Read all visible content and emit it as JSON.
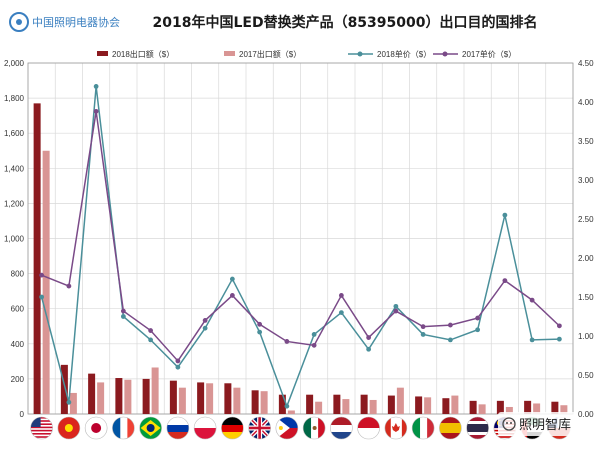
{
  "header": {
    "title": "2018年中国LED替换类产品（85395000）出口目的国排名",
    "logo_text": "中国照明电器协会"
  },
  "watermark": {
    "text": "照明智库"
  },
  "colors": {
    "export_2018": "#8b1a1f",
    "export_2017": "#d99594",
    "price_2018": "#4a8f9a",
    "price_2017": "#7a4a88",
    "grid": "#d9d9d9",
    "axis": "#999999"
  },
  "chart_data": {
    "type": "bar",
    "title": "2018年中国LED替换类产品（85395000）出口目的国排名",
    "xlabel": "",
    "ylabel": "",
    "grid": true,
    "legend_position": "top",
    "categories": [
      "美国",
      "越南",
      "日本",
      "法国",
      "巴西",
      "俄罗斯",
      "波兰",
      "德国",
      "英国",
      "菲律宾",
      "墨西哥",
      "荷兰",
      "印尼",
      "加拿大",
      "意大利",
      "西班牙",
      "泰国",
      "马来西亚",
      "阿联酋",
      "智利"
    ],
    "category_icons": [
      "flag-us",
      "flag-vn",
      "flag-jp",
      "flag-fr",
      "flag-br",
      "flag-ru",
      "flag-pl",
      "flag-de",
      "flag-gb",
      "flag-ph",
      "flag-mx",
      "flag-nl",
      "flag-id",
      "flag-ca",
      "flag-it",
      "flag-es",
      "flag-th",
      "flag-my",
      "flag-ae",
      "flag-cl"
    ],
    "ylim": [
      0,
      2000
    ],
    "yticks": [
      "0",
      "200",
      "400",
      "600",
      "800",
      "1,000",
      "1,200",
      "1,400",
      "1,600",
      "1,800",
      "2,000"
    ],
    "y2lim": [
      0,
      4.5
    ],
    "y2ticks": [
      "0.00",
      "0.50",
      "1.00",
      "1.50",
      "2.00",
      "2.50",
      "3.00",
      "3.50",
      "4.00",
      "4.50"
    ],
    "series": [
      {
        "name": "2018出口额（$）",
        "type": "bar",
        "axis": "left",
        "values": [
          1770,
          280,
          230,
          205,
          200,
          190,
          180,
          175,
          135,
          110,
          110,
          110,
          110,
          105,
          100,
          90,
          75,
          75,
          75,
          70
        ]
      },
      {
        "name": "2017出口额（$）",
        "type": "bar",
        "axis": "left",
        "values": [
          1500,
          120,
          180,
          195,
          265,
          150,
          175,
          150,
          130,
          20,
          70,
          85,
          80,
          150,
          95,
          105,
          55,
          40,
          60,
          50
        ]
      },
      {
        "name": "2018单价（$）",
        "type": "line",
        "axis": "right",
        "values": [
          1.5,
          0.15,
          4.2,
          1.25,
          0.95,
          0.6,
          1.1,
          1.73,
          1.05,
          0.1,
          1.02,
          1.3,
          0.83,
          1.38,
          1.02,
          0.95,
          1.08,
          2.55,
          0.95,
          0.96
        ]
      },
      {
        "name": "2017单价（$）",
        "type": "line",
        "axis": "right",
        "values": [
          1.78,
          1.64,
          3.88,
          1.32,
          1.07,
          0.68,
          1.2,
          1.52,
          1.15,
          0.93,
          0.88,
          1.52,
          0.98,
          1.32,
          1.12,
          1.14,
          1.23,
          1.71,
          1.46,
          1.13
        ]
      }
    ]
  }
}
